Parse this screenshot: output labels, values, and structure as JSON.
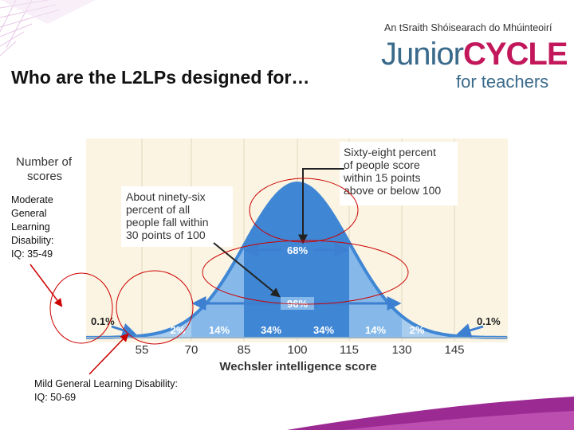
{
  "slide": {
    "title": "Who are the L2LPs designed for…",
    "logo": {
      "tagline": "An tSraith Shóisearach do Mhúinteoirí",
      "brand_part1": "Junior",
      "brand_part2": "CYCLE",
      "subtitle": "for teachers"
    },
    "notes": {
      "moderate": [
        "Moderate",
        "General",
        "Learning",
        "Disability:",
        "IQ: 35-49"
      ],
      "mild": [
        "Mild General Learning Disability:",
        "IQ: 50-69"
      ]
    }
  },
  "diagram": {
    "ylabel": [
      "Number of",
      "scores"
    ],
    "xlabel": "Wechsler intelligence score",
    "callout_68": [
      "Sixty-eight percent",
      "of people score",
      "within 15 points",
      "above or below 100"
    ],
    "callout_96": [
      "About ninety-six",
      "percent of all",
      "people fall within",
      "30 points of 100"
    ],
    "range_68": "68%",
    "range_96": "96%",
    "tail_left": "0.1%",
    "tail_right": "0.1%",
    "band_labels": [
      "2%",
      "14%",
      "34%",
      "34%",
      "14%",
      "2%"
    ],
    "ticks": [
      "55",
      "70",
      "85",
      "100",
      "115",
      "130",
      "145"
    ]
  },
  "colors": {
    "panel": "#fbf4e2",
    "curve_light": "#a9cdee",
    "curve_mid": "#6ea9e3",
    "curve_dark": "#3f86d4",
    "arrow": "#3d7fd0",
    "marker": "#cc0000",
    "magenta": "#c2185b"
  }
}
